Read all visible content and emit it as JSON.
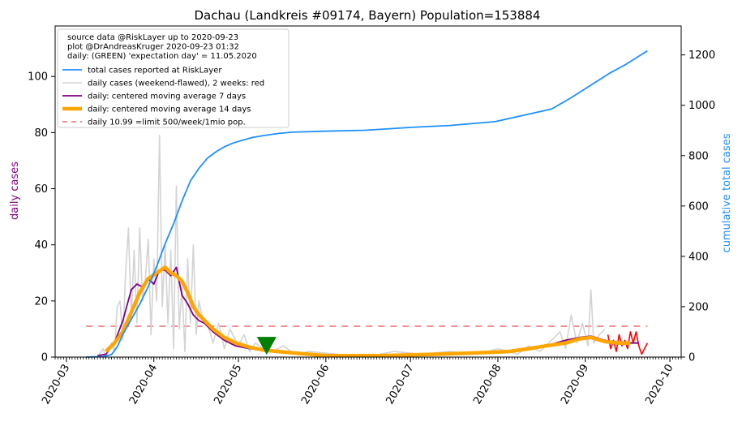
{
  "chart_data": {
    "type": "line",
    "title": "Dachau (Landkreis #09174, Bayern) Population=153884",
    "ylabel_left": "daily cases",
    "ylabel_right": "cumulative total cases",
    "ylim_left": [
      0,
      118
    ],
    "ylim_right": [
      0,
      1315
    ],
    "yticks_left": [
      0,
      20,
      40,
      60,
      80,
      100
    ],
    "yticks_right": [
      0,
      200,
      400,
      600,
      800,
      1000,
      1200
    ],
    "xlim": [
      "2020-02-26",
      "2020-10-05"
    ],
    "xticks": [
      "2020-03",
      "2020-04",
      "2020-05",
      "2020-06",
      "2020-07",
      "2020-08",
      "2020-09",
      "2020-10"
    ],
    "legend_location": "top-left",
    "legend_text": [
      "source data @RiskLayer up to 2020-09-23",
      "plot @DrAndreasKruger 2020-09-23 01:32",
      "daily: (GREEN) 'expectation day' = 11.05.2020"
    ],
    "colors": {
      "total": "#1e90ff",
      "daily": "#d3d3d3",
      "daily_recent": "#ff0000",
      "avg7": "#800080",
      "avg14": "#ffa500",
      "limit": "#f08080",
      "expectation_marker": "#008000",
      "left_axis_label": "#800080",
      "right_axis_label": "#1e90ff"
    },
    "series": [
      {
        "name": "total cases reported at RiskLayer",
        "axis": "right",
        "points": [
          [
            "2020-03-08",
            0
          ],
          [
            "2020-03-14",
            2
          ],
          [
            "2020-03-17",
            10
          ],
          [
            "2020-03-19",
            40
          ],
          [
            "2020-03-21",
            90
          ],
          [
            "2020-03-24",
            150
          ],
          [
            "2020-03-27",
            210
          ],
          [
            "2020-03-30",
            280
          ],
          [
            "2020-04-02",
            360
          ],
          [
            "2020-04-05",
            450
          ],
          [
            "2020-04-08",
            530
          ],
          [
            "2020-04-11",
            620
          ],
          [
            "2020-04-14",
            700
          ],
          [
            "2020-04-17",
            750
          ],
          [
            "2020-04-20",
            790
          ],
          [
            "2020-04-23",
            815
          ],
          [
            "2020-04-26",
            835
          ],
          [
            "2020-04-29",
            850
          ],
          [
            "2020-05-02",
            860
          ],
          [
            "2020-05-06",
            872
          ],
          [
            "2020-05-10",
            880
          ],
          [
            "2020-05-15",
            888
          ],
          [
            "2020-05-20",
            893
          ],
          [
            "2020-05-31",
            897
          ],
          [
            "2020-06-15",
            901
          ],
          [
            "2020-07-01",
            912
          ],
          [
            "2020-07-15",
            920
          ],
          [
            "2020-07-31",
            935
          ],
          [
            "2020-08-10",
            960
          ],
          [
            "2020-08-20",
            985
          ],
          [
            "2020-08-27",
            1030
          ],
          [
            "2020-09-03",
            1080
          ],
          [
            "2020-09-10",
            1130
          ],
          [
            "2020-09-15",
            1160
          ],
          [
            "2020-09-20",
            1195
          ],
          [
            "2020-09-23",
            1216
          ]
        ]
      },
      {
        "name": "daily cases (weekend-flawed), 2 weeks: red",
        "axis": "left",
        "points": [
          [
            "2020-03-12",
            0
          ],
          [
            "2020-03-14",
            3
          ],
          [
            "2020-03-15",
            0
          ],
          [
            "2020-03-17",
            5
          ],
          [
            "2020-03-18",
            2
          ],
          [
            "2020-03-19",
            18
          ],
          [
            "2020-03-20",
            20
          ],
          [
            "2020-03-21",
            6
          ],
          [
            "2020-03-22",
            30
          ],
          [
            "2020-03-23",
            46
          ],
          [
            "2020-03-24",
            14
          ],
          [
            "2020-03-25",
            38
          ],
          [
            "2020-03-26",
            12
          ],
          [
            "2020-03-27",
            46
          ],
          [
            "2020-03-28",
            20
          ],
          [
            "2020-03-29",
            28
          ],
          [
            "2020-03-30",
            42
          ],
          [
            "2020-03-31",
            8
          ],
          [
            "2020-04-01",
            35
          ],
          [
            "2020-04-02",
            20
          ],
          [
            "2020-04-03",
            79
          ],
          [
            "2020-04-04",
            18
          ],
          [
            "2020-04-05",
            40
          ],
          [
            "2020-04-06",
            12
          ],
          [
            "2020-04-07",
            38
          ],
          [
            "2020-04-08",
            3
          ],
          [
            "2020-04-09",
            61
          ],
          [
            "2020-04-10",
            10
          ],
          [
            "2020-04-11",
            25
          ],
          [
            "2020-04-12",
            2
          ],
          [
            "2020-04-13",
            35
          ],
          [
            "2020-04-14",
            12
          ],
          [
            "2020-04-15",
            40
          ],
          [
            "2020-04-16",
            8
          ],
          [
            "2020-04-17",
            20
          ],
          [
            "2020-04-18",
            15
          ],
          [
            "2020-04-20",
            12
          ],
          [
            "2020-04-22",
            5
          ],
          [
            "2020-04-24",
            12
          ],
          [
            "2020-04-26",
            3
          ],
          [
            "2020-04-28",
            10
          ],
          [
            "2020-05-01",
            4
          ],
          [
            "2020-05-03",
            8
          ],
          [
            "2020-05-05",
            2
          ],
          [
            "2020-05-07",
            5
          ],
          [
            "2020-05-10",
            3
          ],
          [
            "2020-05-13",
            2
          ],
          [
            "2020-05-17",
            4
          ],
          [
            "2020-05-21",
            1
          ],
          [
            "2020-05-26",
            2
          ],
          [
            "2020-06-05",
            1
          ],
          [
            "2020-06-15",
            0
          ],
          [
            "2020-06-25",
            2
          ],
          [
            "2020-07-05",
            1
          ],
          [
            "2020-07-15",
            2
          ],
          [
            "2020-07-25",
            1
          ],
          [
            "2020-08-01",
            3
          ],
          [
            "2020-08-08",
            1
          ],
          [
            "2020-08-12",
            4
          ],
          [
            "2020-08-16",
            2
          ],
          [
            "2020-08-20",
            6
          ],
          [
            "2020-08-23",
            9
          ],
          [
            "2020-08-25",
            3
          ],
          [
            "2020-08-27",
            15
          ],
          [
            "2020-08-29",
            5
          ],
          [
            "2020-08-31",
            12
          ],
          [
            "2020-09-02",
            4
          ],
          [
            "2020-09-03",
            24
          ],
          [
            "2020-09-04",
            5
          ],
          [
            "2020-09-06",
            8
          ],
          [
            "2020-09-08",
            10
          ]
        ]
      },
      {
        "name": "daily cases (weekend-flawed), 2 weeks: red (recent)",
        "axis": "left",
        "points": [
          [
            "2020-09-09",
            8
          ],
          [
            "2020-09-10",
            3
          ],
          [
            "2020-09-11",
            6
          ],
          [
            "2020-09-12",
            2
          ],
          [
            "2020-09-13",
            8
          ],
          [
            "2020-09-14",
            4
          ],
          [
            "2020-09-15",
            6
          ],
          [
            "2020-09-16",
            3
          ],
          [
            "2020-09-17",
            9
          ],
          [
            "2020-09-18",
            5
          ],
          [
            "2020-09-19",
            9
          ],
          [
            "2020-09-20",
            4
          ],
          [
            "2020-09-21",
            1
          ],
          [
            "2020-09-22",
            3
          ],
          [
            "2020-09-23",
            5
          ]
        ]
      },
      {
        "name": "daily: centered moving average 7 days",
        "axis": "left",
        "points": [
          [
            "2020-03-12",
            0.5
          ],
          [
            "2020-03-15",
            1
          ],
          [
            "2020-03-18",
            5
          ],
          [
            "2020-03-21",
            13
          ],
          [
            "2020-03-24",
            24
          ],
          [
            "2020-03-26",
            26
          ],
          [
            "2020-03-28",
            25
          ],
          [
            "2020-03-30",
            28
          ],
          [
            "2020-04-01",
            26
          ],
          [
            "2020-04-03",
            31
          ],
          [
            "2020-04-05",
            31
          ],
          [
            "2020-04-07",
            29
          ],
          [
            "2020-04-09",
            32
          ],
          [
            "2020-04-11",
            22
          ],
          [
            "2020-04-13",
            19
          ],
          [
            "2020-04-15",
            15
          ],
          [
            "2020-04-17",
            13
          ],
          [
            "2020-04-19",
            12
          ],
          [
            "2020-04-22",
            9
          ],
          [
            "2020-04-26",
            6
          ],
          [
            "2020-04-30",
            4
          ],
          [
            "2020-05-05",
            3
          ],
          [
            "2020-05-10",
            2.5
          ],
          [
            "2020-05-15",
            2
          ],
          [
            "2020-05-20",
            1.5
          ],
          [
            "2020-06-01",
            0.5
          ],
          [
            "2020-06-20",
            0.5
          ],
          [
            "2020-07-10",
            1
          ],
          [
            "2020-07-25",
            1.5
          ],
          [
            "2020-08-05",
            2
          ],
          [
            "2020-08-12",
            3
          ],
          [
            "2020-08-18",
            4
          ],
          [
            "2020-08-25",
            6
          ],
          [
            "2020-08-30",
            7
          ],
          [
            "2020-09-03",
            7.5
          ],
          [
            "2020-09-08",
            6
          ],
          [
            "2020-09-13",
            5
          ],
          [
            "2020-09-18",
            5
          ],
          [
            "2020-09-20",
            5
          ]
        ]
      },
      {
        "name": "daily: centered moving average 14 days",
        "axis": "left",
        "points": [
          [
            "2020-03-15",
            2
          ],
          [
            "2020-03-18",
            5
          ],
          [
            "2020-03-21",
            9
          ],
          [
            "2020-03-24",
            16
          ],
          [
            "2020-03-27",
            23
          ],
          [
            "2020-03-30",
            28
          ],
          [
            "2020-04-02",
            30
          ],
          [
            "2020-04-05",
            32
          ],
          [
            "2020-04-07",
            30
          ],
          [
            "2020-04-09",
            29
          ],
          [
            "2020-04-11",
            27
          ],
          [
            "2020-04-13",
            23
          ],
          [
            "2020-04-15",
            18
          ],
          [
            "2020-04-17",
            15
          ],
          [
            "2020-04-19",
            13
          ],
          [
            "2020-04-22",
            10
          ],
          [
            "2020-04-26",
            7
          ],
          [
            "2020-04-30",
            5
          ],
          [
            "2020-05-05",
            3.5
          ],
          [
            "2020-05-10",
            2.5
          ],
          [
            "2020-05-15",
            2
          ],
          [
            "2020-05-20",
            1.5
          ],
          [
            "2020-06-01",
            0.5
          ],
          [
            "2020-06-20",
            0.5
          ],
          [
            "2020-07-10",
            1
          ],
          [
            "2020-07-25",
            1.5
          ],
          [
            "2020-08-05",
            2
          ],
          [
            "2020-08-12",
            3
          ],
          [
            "2020-08-18",
            4
          ],
          [
            "2020-08-25",
            5
          ],
          [
            "2020-08-30",
            6.5
          ],
          [
            "2020-09-03",
            7
          ],
          [
            "2020-09-08",
            5.5
          ],
          [
            "2020-09-13",
            5
          ],
          [
            "2020-09-17",
            5
          ]
        ]
      },
      {
        "name": "daily 10.99 =limit 500/week/1mio pop.",
        "axis": "left",
        "points": [
          [
            "2020-03-08",
            10.99
          ],
          [
            "2020-09-23",
            10.99
          ]
        ]
      }
    ],
    "expectation_day": {
      "x": "2020-05-11",
      "y": 4
    }
  }
}
